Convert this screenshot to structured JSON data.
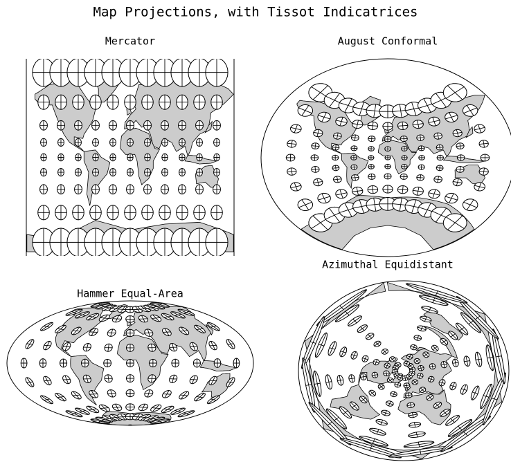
{
  "title": "Map Projections, with Tissot Indicatrices",
  "panels": [
    {
      "title": "Mercator"
    },
    {
      "title": "August Conformal"
    },
    {
      "title": "Hammer Equal-Area"
    },
    {
      "title": "Azimuthal Equidistant"
    }
  ]
}
